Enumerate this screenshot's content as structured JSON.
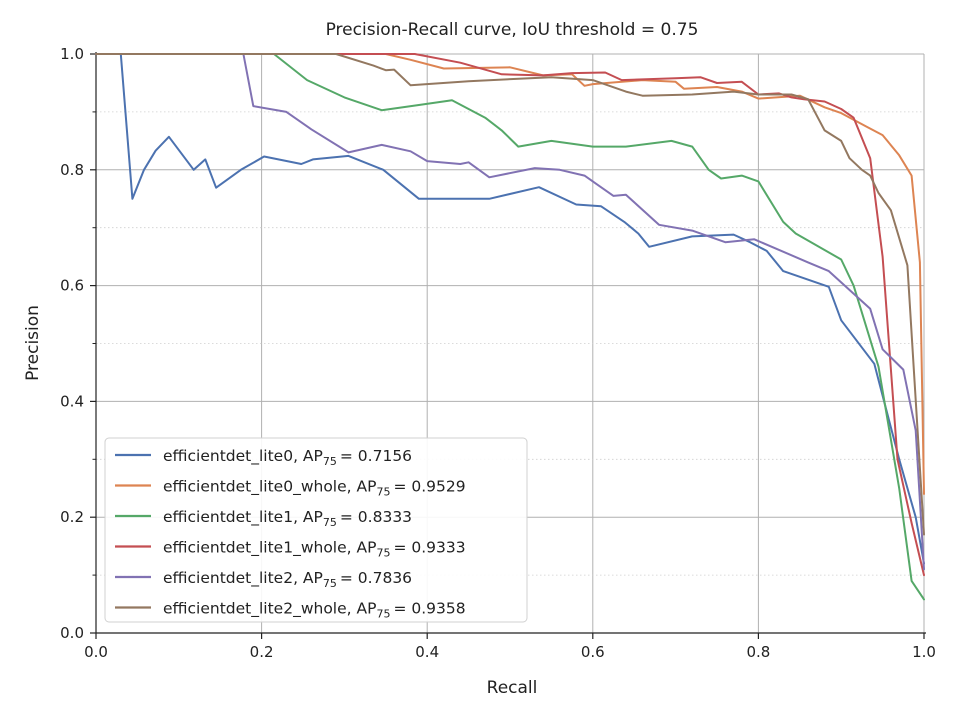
{
  "chart_data": {
    "type": "line",
    "title": "Precision-Recall curve, IoU threshold = 0.75",
    "xlabel": "Recall",
    "ylabel": "Precision",
    "xlim": [
      0,
      1
    ],
    "ylim": [
      0,
      1
    ],
    "xticks": [
      0.0,
      0.2,
      0.4,
      0.6,
      0.8,
      1.0
    ],
    "yticks": [
      0.0,
      0.2,
      0.4,
      0.6,
      0.8,
      1.0
    ],
    "xtick_labels": [
      "0.0",
      "0.2",
      "0.4",
      "0.6",
      "0.8",
      "1.0"
    ],
    "ytick_labels": [
      "0.0",
      "0.2",
      "0.4",
      "0.6",
      "0.8",
      "1.0"
    ],
    "grid": true,
    "legend_position": "bottom-left",
    "series": [
      {
        "name": "efficientdet_lite0",
        "metric": "AP",
        "metric_sub": "75",
        "metric_value": "0.7156",
        "color": "#4C72B0",
        "points": [
          [
            0.0,
            1.0
          ],
          [
            0.03,
            1.0
          ],
          [
            0.044,
            0.75
          ],
          [
            0.058,
            0.8
          ],
          [
            0.072,
            0.833
          ],
          [
            0.088,
            0.857
          ],
          [
            0.118,
            0.8
          ],
          [
            0.132,
            0.818
          ],
          [
            0.145,
            0.769
          ],
          [
            0.175,
            0.8
          ],
          [
            0.203,
            0.823
          ],
          [
            0.248,
            0.81
          ],
          [
            0.262,
            0.818
          ],
          [
            0.305,
            0.824
          ],
          [
            0.347,
            0.8
          ],
          [
            0.39,
            0.75
          ],
          [
            0.42,
            0.75
          ],
          [
            0.475,
            0.75
          ],
          [
            0.535,
            0.77
          ],
          [
            0.58,
            0.74
          ],
          [
            0.61,
            0.737
          ],
          [
            0.638,
            0.71
          ],
          [
            0.655,
            0.69
          ],
          [
            0.668,
            0.667
          ],
          [
            0.72,
            0.685
          ],
          [
            0.77,
            0.688
          ],
          [
            0.79,
            0.675
          ],
          [
            0.81,
            0.66
          ],
          [
            0.83,
            0.625
          ],
          [
            0.885,
            0.598
          ],
          [
            0.9,
            0.54
          ],
          [
            0.94,
            0.465
          ],
          [
            0.97,
            0.3
          ],
          [
            0.99,
            0.2
          ],
          [
            1.0,
            0.12
          ]
        ]
      },
      {
        "name": "efficientdet_lite0_whole",
        "metric": "AP",
        "metric_sub": "75",
        "metric_value": "0.9529",
        "color": "#DD8452",
        "points": [
          [
            0.0,
            1.0
          ],
          [
            0.35,
            1.0
          ],
          [
            0.38,
            0.99
          ],
          [
            0.42,
            0.975
          ],
          [
            0.5,
            0.977
          ],
          [
            0.54,
            0.963
          ],
          [
            0.575,
            0.965
          ],
          [
            0.59,
            0.945
          ],
          [
            0.6,
            0.948
          ],
          [
            0.66,
            0.955
          ],
          [
            0.7,
            0.952
          ],
          [
            0.71,
            0.94
          ],
          [
            0.75,
            0.943
          ],
          [
            0.78,
            0.935
          ],
          [
            0.8,
            0.923
          ],
          [
            0.85,
            0.928
          ],
          [
            0.88,
            0.908
          ],
          [
            0.9,
            0.898
          ],
          [
            0.93,
            0.875
          ],
          [
            0.95,
            0.86
          ],
          [
            0.97,
            0.825
          ],
          [
            0.985,
            0.79
          ],
          [
            0.995,
            0.64
          ],
          [
            1.0,
            0.24
          ]
        ]
      },
      {
        "name": "efficientdet_lite1",
        "metric": "AP",
        "metric_sub": "75",
        "metric_value": "0.8333",
        "color": "#55A868",
        "points": [
          [
            0.0,
            1.0
          ],
          [
            0.215,
            1.0
          ],
          [
            0.255,
            0.955
          ],
          [
            0.3,
            0.925
          ],
          [
            0.345,
            0.903
          ],
          [
            0.39,
            0.912
          ],
          [
            0.43,
            0.92
          ],
          [
            0.47,
            0.89
          ],
          [
            0.49,
            0.868
          ],
          [
            0.51,
            0.84
          ],
          [
            0.55,
            0.85
          ],
          [
            0.6,
            0.84
          ],
          [
            0.64,
            0.84
          ],
          [
            0.695,
            0.85
          ],
          [
            0.72,
            0.84
          ],
          [
            0.74,
            0.8
          ],
          [
            0.755,
            0.785
          ],
          [
            0.78,
            0.79
          ],
          [
            0.8,
            0.78
          ],
          [
            0.83,
            0.71
          ],
          [
            0.845,
            0.69
          ],
          [
            0.9,
            0.645
          ],
          [
            0.915,
            0.6
          ],
          [
            0.945,
            0.46
          ],
          [
            0.97,
            0.25
          ],
          [
            0.985,
            0.09
          ],
          [
            1.0,
            0.058
          ]
        ]
      },
      {
        "name": "efficientdet_lite1_whole",
        "metric": "AP",
        "metric_sub": "75",
        "metric_value": "0.9333",
        "color": "#C44E52",
        "points": [
          [
            0.0,
            1.0
          ],
          [
            0.385,
            1.0
          ],
          [
            0.44,
            0.985
          ],
          [
            0.49,
            0.965
          ],
          [
            0.54,
            0.963
          ],
          [
            0.575,
            0.967
          ],
          [
            0.615,
            0.968
          ],
          [
            0.635,
            0.955
          ],
          [
            0.7,
            0.958
          ],
          [
            0.73,
            0.96
          ],
          [
            0.75,
            0.95
          ],
          [
            0.78,
            0.952
          ],
          [
            0.8,
            0.93
          ],
          [
            0.825,
            0.932
          ],
          [
            0.84,
            0.925
          ],
          [
            0.855,
            0.922
          ],
          [
            0.88,
            0.918
          ],
          [
            0.9,
            0.905
          ],
          [
            0.915,
            0.89
          ],
          [
            0.935,
            0.82
          ],
          [
            0.95,
            0.65
          ],
          [
            0.968,
            0.3
          ],
          [
            0.985,
            0.19
          ],
          [
            1.0,
            0.1
          ]
        ]
      },
      {
        "name": "efficientdet_lite2",
        "metric": "AP",
        "metric_sub": "75",
        "metric_value": "0.7836",
        "color": "#8172B3",
        "points": [
          [
            0.0,
            1.0
          ],
          [
            0.178,
            1.0
          ],
          [
            0.19,
            0.91
          ],
          [
            0.23,
            0.9
          ],
          [
            0.26,
            0.87
          ],
          [
            0.305,
            0.83
          ],
          [
            0.345,
            0.843
          ],
          [
            0.38,
            0.832
          ],
          [
            0.4,
            0.815
          ],
          [
            0.44,
            0.81
          ],
          [
            0.45,
            0.813
          ],
          [
            0.475,
            0.787
          ],
          [
            0.53,
            0.803
          ],
          [
            0.56,
            0.8
          ],
          [
            0.59,
            0.79
          ],
          [
            0.605,
            0.775
          ],
          [
            0.625,
            0.755
          ],
          [
            0.64,
            0.757
          ],
          [
            0.68,
            0.705
          ],
          [
            0.72,
            0.695
          ],
          [
            0.76,
            0.675
          ],
          [
            0.795,
            0.68
          ],
          [
            0.86,
            0.64
          ],
          [
            0.885,
            0.625
          ],
          [
            0.935,
            0.56
          ],
          [
            0.95,
            0.49
          ],
          [
            0.975,
            0.455
          ],
          [
            0.99,
            0.35
          ],
          [
            1.0,
            0.11
          ]
        ]
      },
      {
        "name": "efficientdet_lite2_whole",
        "metric": "AP",
        "metric_sub": "75",
        "metric_value": "0.9358",
        "color": "#937860",
        "points": [
          [
            0.0,
            1.0
          ],
          [
            0.29,
            1.0
          ],
          [
            0.335,
            0.98
          ],
          [
            0.35,
            0.972
          ],
          [
            0.36,
            0.973
          ],
          [
            0.38,
            0.946
          ],
          [
            0.45,
            0.953
          ],
          [
            0.55,
            0.96
          ],
          [
            0.6,
            0.955
          ],
          [
            0.64,
            0.935
          ],
          [
            0.66,
            0.928
          ],
          [
            0.72,
            0.93
          ],
          [
            0.77,
            0.935
          ],
          [
            0.8,
            0.93
          ],
          [
            0.84,
            0.93
          ],
          [
            0.86,
            0.922
          ],
          [
            0.88,
            0.868
          ],
          [
            0.9,
            0.85
          ],
          [
            0.91,
            0.82
          ],
          [
            0.925,
            0.8
          ],
          [
            0.935,
            0.79
          ],
          [
            0.945,
            0.76
          ],
          [
            0.96,
            0.73
          ],
          [
            0.98,
            0.635
          ],
          [
            1.0,
            0.17
          ]
        ]
      }
    ]
  }
}
